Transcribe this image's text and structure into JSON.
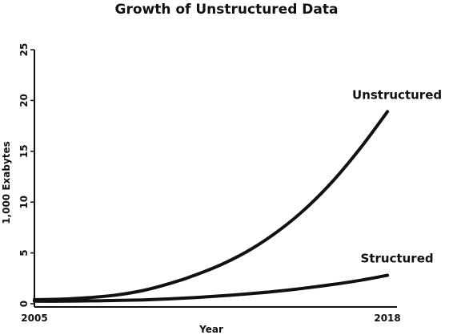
{
  "chart_data": {
    "type": "line",
    "title": "Growth of Unstructured Data",
    "xlabel": "Year",
    "ylabel": "1,000 Exabytes",
    "xlim": [
      2005,
      2019
    ],
    "ylim": [
      0,
      25
    ],
    "x_ticks": [
      2005,
      2018
    ],
    "y_ticks": [
      0,
      5,
      10,
      15,
      20,
      25
    ],
    "grid": false,
    "legend": "inline labels",
    "series": [
      {
        "name": "Unstructured",
        "x": [
          2005,
          2006,
          2007,
          2008,
          2009,
          2010,
          2011,
          2012,
          2013,
          2014,
          2015,
          2016,
          2017,
          2018
        ],
        "values": [
          0.4,
          0.45,
          0.6,
          0.85,
          1.3,
          2.0,
          2.9,
          4.0,
          5.4,
          7.2,
          9.4,
          12.1,
          15.3,
          18.9
        ]
      },
      {
        "name": "Structured",
        "x": [
          2005,
          2006,
          2007,
          2008,
          2009,
          2010,
          2011,
          2012,
          2013,
          2014,
          2015,
          2016,
          2017,
          2018
        ],
        "values": [
          0.25,
          0.25,
          0.28,
          0.32,
          0.38,
          0.48,
          0.62,
          0.8,
          1.0,
          1.25,
          1.55,
          1.9,
          2.3,
          2.8
        ]
      }
    ],
    "colors": {
      "line": "#111111",
      "axis": "#111111",
      "background": "#ffffff"
    }
  }
}
